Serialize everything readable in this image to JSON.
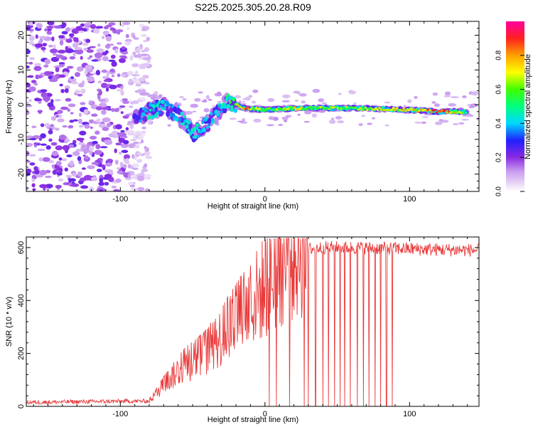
{
  "title": "S225.2025.305.20.28.R09",
  "chart_data": [
    {
      "type": "heatmap",
      "panel": "top",
      "xlabel": "Height of straight line (km)",
      "ylabel": "Frequency (Hz)",
      "xlim": [
        -165,
        148
      ],
      "ylim": [
        -25,
        24
      ],
      "x_ticks": [
        -100,
        0,
        100
      ],
      "x_tick_labels": [
        "-100",
        "0",
        "100"
      ],
      "y_ticks": [
        -20,
        -10,
        0,
        10,
        20
      ],
      "y_tick_labels": [
        "-20",
        "-10",
        "0",
        "10",
        "20"
      ],
      "colorbar": {
        "label": "Normalized spectral amplitude",
        "range": [
          0,
          1
        ],
        "ticks": [
          0.0,
          0.2,
          0.4,
          0.6,
          0.8
        ],
        "tick_labels": [
          "0.0",
          "0.2",
          "0.4",
          "0.6",
          "0.8"
        ]
      },
      "ridge": [
        {
          "x": -90,
          "y": -4.0,
          "amp": 0.3
        },
        {
          "x": -80,
          "y": -2.0,
          "amp": 0.45
        },
        {
          "x": -70,
          "y": -0.5,
          "amp": 0.4
        },
        {
          "x": -60,
          "y": -2.5,
          "amp": 0.4
        },
        {
          "x": -50,
          "y": -8.5,
          "amp": 0.45
        },
        {
          "x": -42,
          "y": -6.0,
          "amp": 0.4
        },
        {
          "x": -35,
          "y": -3.5,
          "amp": 0.4
        },
        {
          "x": -25,
          "y": 1.0,
          "amp": 0.5
        },
        {
          "x": -15,
          "y": -1.0,
          "amp": 0.85
        },
        {
          "x": 0,
          "y": -1.5,
          "amp": 0.6
        },
        {
          "x": 20,
          "y": -1.0,
          "amp": 0.7
        },
        {
          "x": 40,
          "y": -1.0,
          "amp": 0.65
        },
        {
          "x": 60,
          "y": -1.0,
          "amp": 0.6
        },
        {
          "x": 80,
          "y": -1.2,
          "amp": 0.7
        },
        {
          "x": 100,
          "y": -1.5,
          "amp": 0.7
        },
        {
          "x": 120,
          "y": -2.0,
          "amp": 0.95
        },
        {
          "x": 140,
          "y": -2.0,
          "amp": 0.55
        }
      ],
      "noise_region_x": [
        -165,
        -90
      ]
    },
    {
      "type": "line",
      "panel": "bottom",
      "xlabel": "Height of straight line (km)",
      "ylabel": "SNR (10 * v/v)",
      "xlim": [
        -165,
        148
      ],
      "ylim": [
        0,
        640
      ],
      "x_ticks": [
        -100,
        0,
        100
      ],
      "x_tick_labels": [
        "-100",
        "0",
        "100"
      ],
      "y_ticks": [
        0,
        200,
        400,
        600
      ],
      "y_tick_labels": [
        "0",
        "200",
        "400",
        "600"
      ],
      "series": [
        {
          "name": "SNR",
          "color": "#e83a3a",
          "x": [
            -165,
            -120,
            -80,
            -75,
            -65,
            -55,
            -45,
            -35,
            -25,
            -20,
            -15,
            -10,
            -5,
            0,
            5,
            10,
            15,
            20,
            25,
            30,
            40,
            60,
            80,
            100,
            120,
            148
          ],
          "y": [
            15,
            18,
            20,
            50,
            110,
            160,
            190,
            230,
            300,
            330,
            360,
            380,
            420,
            450,
            480,
            520,
            550,
            570,
            585,
            595,
            600,
            600,
            598,
            595,
            592,
            590
          ]
        }
      ],
      "dropout_x": [
        3,
        8,
        17,
        27,
        30,
        35,
        40,
        44,
        48,
        52,
        55,
        59,
        64,
        68,
        72,
        76,
        80,
        84,
        88
      ]
    }
  ],
  "colors": {
    "line": "#e83a3a",
    "axis": "#000000",
    "background": "#ffffff"
  }
}
